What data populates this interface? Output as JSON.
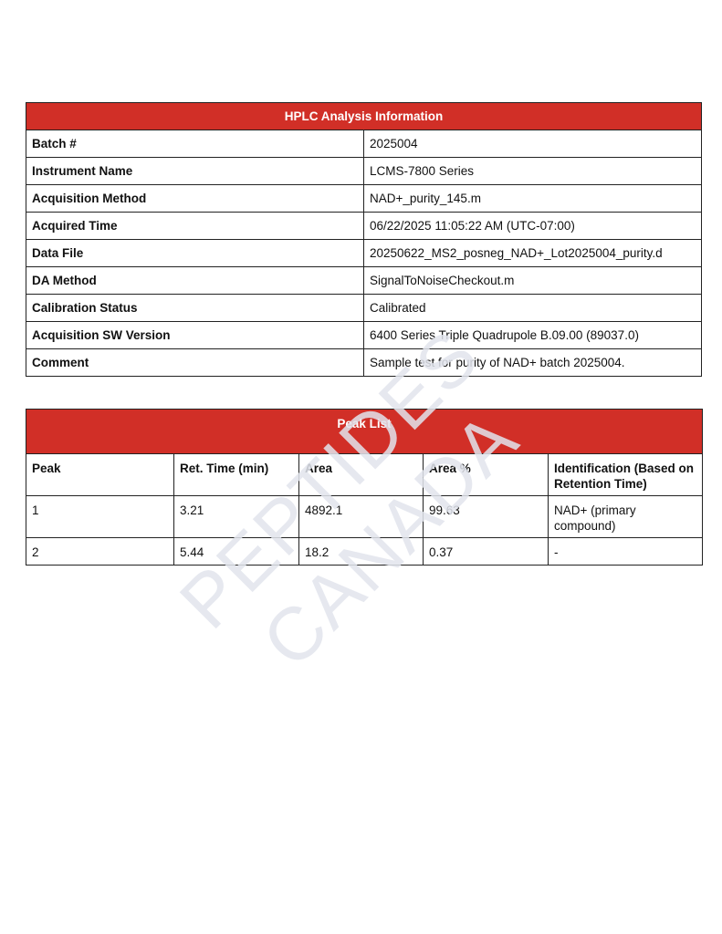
{
  "watermark": "PEPTIDES CANADA",
  "colors": {
    "header_bg": "#d12f27",
    "header_text": "#ffffff"
  },
  "info_table": {
    "title": "HPLC Analysis Information",
    "rows": [
      {
        "label": "Batch #",
        "value": "2025004"
      },
      {
        "label": "Instrument Name",
        "value": "LCMS-7800 Series"
      },
      {
        "label": "Acquisition Method",
        "value": "NAD+_purity_145.m"
      },
      {
        "label": "Acquired Time",
        "value": "06/22/2025 11:05:22 AM (UTC-07:00)"
      },
      {
        "label": "Data File",
        "value": "20250622_MS2_posneg_NAD+_Lot2025004_purity.d"
      },
      {
        "label": "DA Method",
        "value": "SignalToNoiseCheckout.m"
      },
      {
        "label": "Calibration Status",
        "value": "Calibrated"
      },
      {
        "label": "Acquisition SW Version",
        "value": "6400 Series Triple Quadrupole B.09.00 (89037.0)"
      },
      {
        "label": "Comment",
        "value": "Sample test for purity of NAD+ batch 2025004."
      }
    ]
  },
  "peak_table": {
    "title": "Peak List",
    "columns": [
      "Peak",
      "Ret. Time (min)",
      "Area",
      "Area %",
      "Identification (Based on Retention Time)"
    ],
    "rows": [
      [
        "1",
        "3.21",
        "4892.1",
        "99.63",
        "NAD+ (primary compound)"
      ],
      [
        "2",
        "5.44",
        "18.2",
        "0.37",
        "-"
      ]
    ]
  }
}
